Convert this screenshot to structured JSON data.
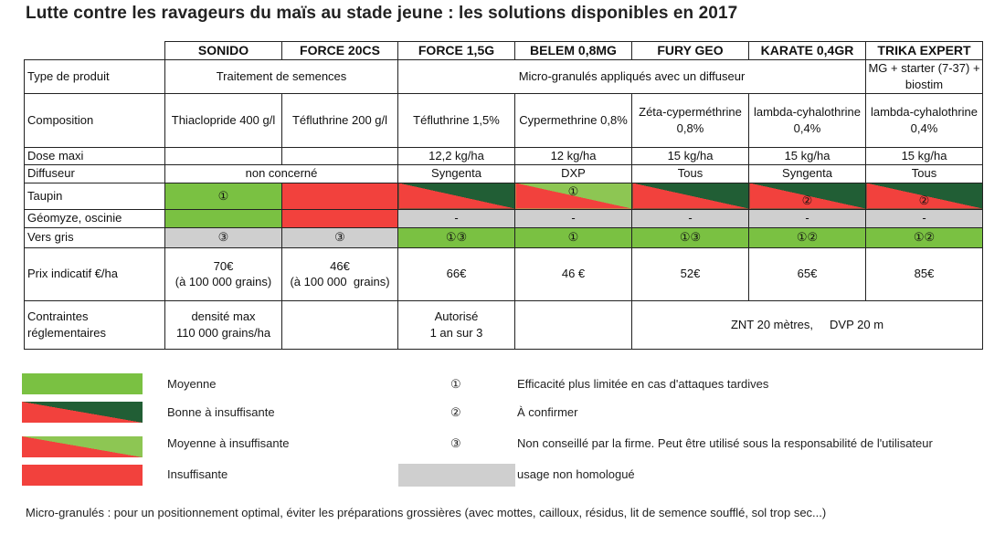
{
  "title": "Lutte contre les ravageurs du maïs au stade jeune : les solutions disponibles en 2017",
  "columns": [
    "SONIDO",
    "FORCE 20CS",
    "FORCE 1,5G",
    "BELEM 0,8MG",
    "FURY GEO",
    "KARATE 0,4GR",
    "TRIKA EXPERT"
  ],
  "rows": {
    "type": {
      "label": "Type de produit",
      "traitement": "Traitement de semences",
      "micro": "Micro-granulés appliqués avec un diffuseur",
      "trika": "MG + starter (7-37) + biostim"
    },
    "composition": {
      "label": "Composition",
      "values": [
        "Thiaclopride 400 g/l",
        "Téfluthrine 200 g/l",
        "Téfluthrine 1,5%",
        "Cypermethrine 0,8%",
        "Zéta-cyperméthrine 0,8%",
        "lambda-cyhalothrine 0,4%",
        "lambda-cyhalothrine 0,4%"
      ]
    },
    "dose": {
      "label": "Dose maxi",
      "values": [
        "12,2 kg/ha",
        "12 kg/ha",
        "15 kg/ha",
        "15 kg/ha",
        "15 kg/ha"
      ]
    },
    "diffuseur": {
      "label": "Diffuseur",
      "non_concerne": "non concerné",
      "values": [
        "Syngenta",
        "DXP",
        "Tous",
        "Syngenta",
        "Tous"
      ]
    },
    "taupin": {
      "label": "Taupin",
      "sonido": "①",
      "belem": "①",
      "karate": "②",
      "trika": "②"
    },
    "geomyze": {
      "label": "Géomyze, oscinie",
      "dash": "-"
    },
    "vers": {
      "label": "Vers gris",
      "values": [
        "③",
        "③",
        "①③",
        "①",
        "①③",
        "①②",
        "①②"
      ]
    },
    "prix": {
      "label": "Prix indicatif €/ha",
      "sonido": [
        "70€",
        "(à 100 000 grains)"
      ],
      "force20": [
        "46€",
        "(à 100 000  grains)"
      ],
      "values": [
        "66€",
        "46 €",
        "52€",
        "65€",
        "85€"
      ]
    },
    "contraintes": {
      "label": [
        "Contraintes",
        "réglementaires"
      ],
      "sonido": [
        "densité max",
        "110 000 grains/ha"
      ],
      "force15": [
        "Autorisé",
        "1 an sur 3"
      ],
      "znt": "ZNT 20 mètres,",
      "dvp": "DVP 20 m"
    }
  },
  "legend": {
    "moyenne": "Moyenne",
    "bonne": "Bonne à insuffisante",
    "moyenne_ins": "Moyenne à insuffisante",
    "insuffisante": "Insuffisante",
    "n1": "①",
    "n2": "②",
    "n3": "③",
    "t1": "Efficacité plus limitée en cas d'attaques tardives",
    "t2": "À confirmer",
    "t3": "Non conseillé par la firme. Peut être utilisé sous la responsabilité de l'utilisateur",
    "gray": "usage non homologué"
  },
  "footnote": "Micro-granulés : pour un positionnement optimal, éviter les préparations grossières (avec mottes, cailloux, résidus, lit de semence soufflé, sol trop sec...)",
  "colors": {
    "green": "#7ac142",
    "dark_green": "#215e35",
    "light_green": "#8dc653",
    "red": "#f2413d",
    "gray": "#cfcfcf"
  }
}
